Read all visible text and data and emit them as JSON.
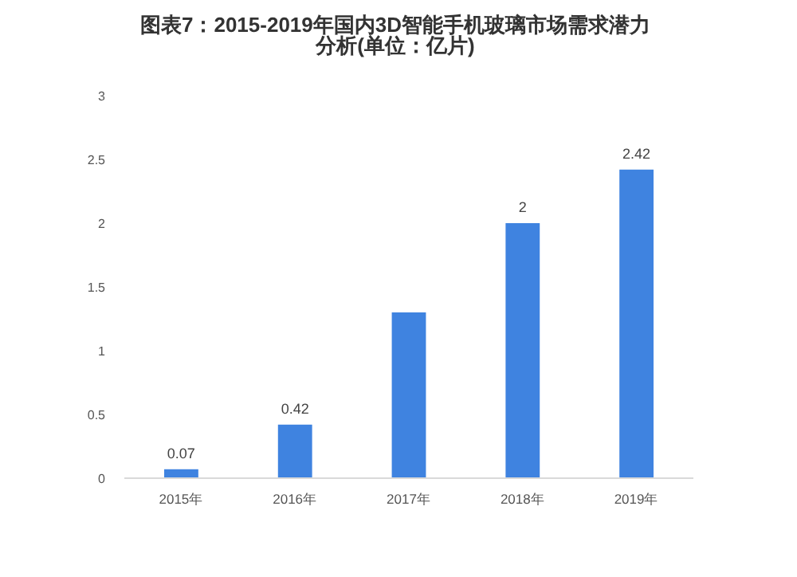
{
  "chart_data": {
    "type": "bar",
    "title": "图表7：2015-2019年国内3D智能手机玻璃市场需求潜力分析(单位：亿片)",
    "categories": [
      "2015年",
      "2016年",
      "2017年",
      "2018年",
      "2019年"
    ],
    "values": [
      0.07,
      0.42,
      1.3,
      2,
      2.42
    ],
    "value_labels": [
      "0.07",
      "0.42",
      null,
      "2",
      "2.42"
    ],
    "color": "#3f83e0",
    "ylim": [
      0,
      3
    ],
    "yticks": [
      0,
      0.5,
      1,
      1.5,
      2,
      2.5,
      3
    ],
    "grid": false
  }
}
